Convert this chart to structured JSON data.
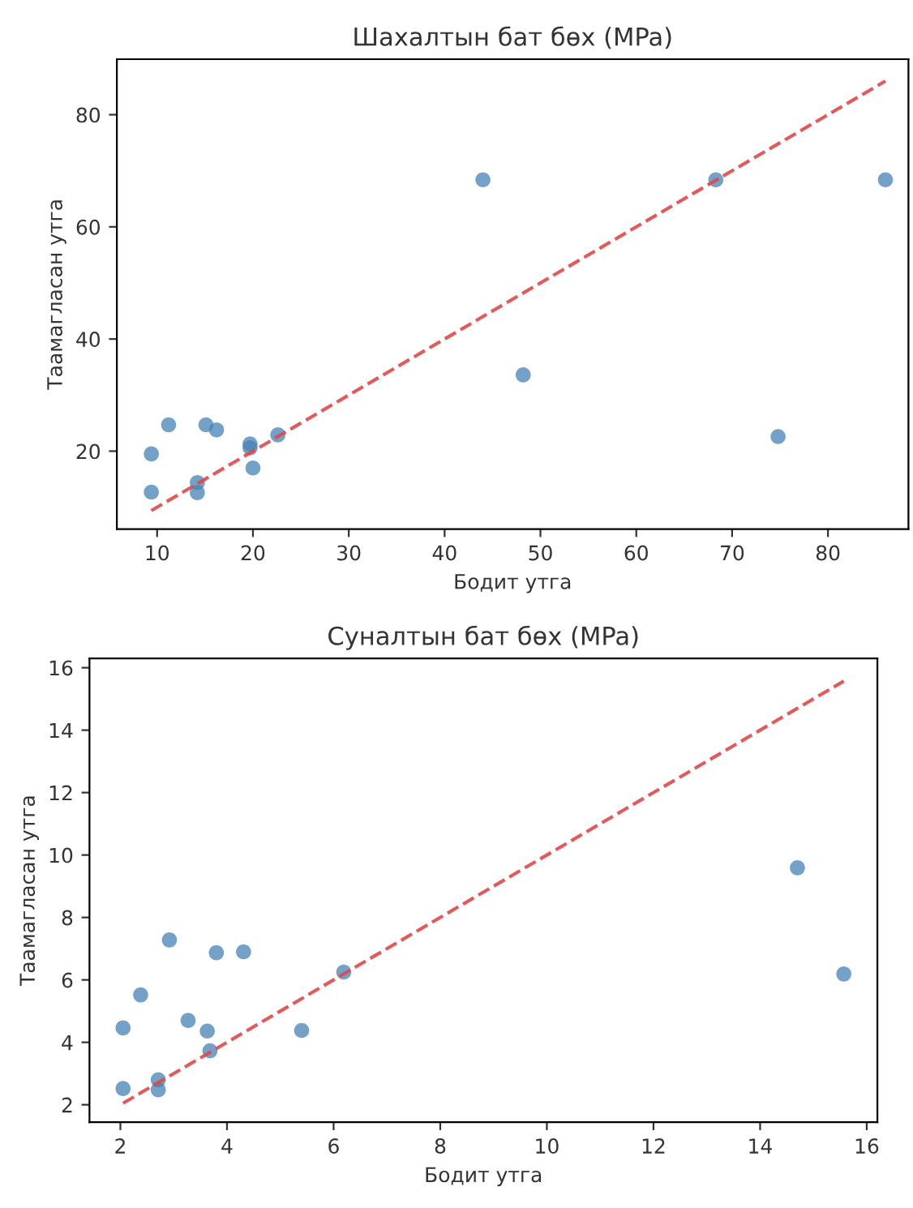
{
  "chart_data": [
    {
      "type": "scatter",
      "title": "Шахалтын бат бөх (MPa)",
      "xlabel": "Бодит утга",
      "ylabel": "Таамагласан утга",
      "xlim": [
        5.8,
        88.4
      ],
      "ylim": [
        6.1,
        89.9
      ],
      "xticks": [
        10,
        20,
        30,
        40,
        50,
        60,
        70,
        80
      ],
      "yticks": [
        20,
        40,
        60,
        80
      ],
      "grid": false,
      "legend": false,
      "series": [
        {
          "marker": "circle",
          "color": "#4682b4",
          "x": [
            44.0,
            68.3,
            86.0,
            48.2,
            74.8,
            11.2,
            15.1,
            16.2,
            9.4,
            9.4,
            14.2,
            14.2,
            19.7,
            19.7,
            20.0,
            22.6
          ],
          "values": [
            68.4,
            68.4,
            68.4,
            33.6,
            22.6,
            24.7,
            24.7,
            23.8,
            19.5,
            12.7,
            14.4,
            12.6,
            21.3,
            20.6,
            17.0,
            22.9
          ]
        },
        {
          "type": "line",
          "color": "#e04848",
          "line_style": "dashed",
          "x": [
            9.4,
            86.0
          ],
          "values": [
            9.4,
            86.0
          ]
        }
      ]
    },
    {
      "type": "scatter",
      "title": "Суналтын бат бөх (MPa)",
      "xlabel": "Бодит утга",
      "ylabel": "Таамагласан утга",
      "xlim": [
        1.42,
        16.2
      ],
      "ylim": [
        1.44,
        16.3
      ],
      "xticks": [
        2,
        4,
        6,
        8,
        10,
        12,
        14,
        16
      ],
      "yticks": [
        2,
        4,
        6,
        8,
        10,
        12,
        14,
        16
      ],
      "grid": false,
      "legend": false,
      "series": [
        {
          "marker": "circle",
          "color": "#4682b4",
          "x": [
            14.7,
            15.57,
            2.92,
            3.8,
            4.31,
            6.19,
            2.38,
            2.05,
            3.27,
            3.63,
            3.68,
            5.4,
            2.05,
            2.71,
            2.71
          ],
          "values": [
            9.59,
            6.19,
            7.28,
            6.87,
            6.9,
            6.25,
            5.52,
            4.46,
            4.7,
            4.36,
            3.73,
            4.38,
            2.52,
            2.8,
            2.48
          ]
        },
        {
          "type": "line",
          "color": "#e04848",
          "line_style": "dashed",
          "x": [
            2.05,
            15.57
          ],
          "values": [
            2.05,
            15.57
          ]
        }
      ]
    }
  ]
}
